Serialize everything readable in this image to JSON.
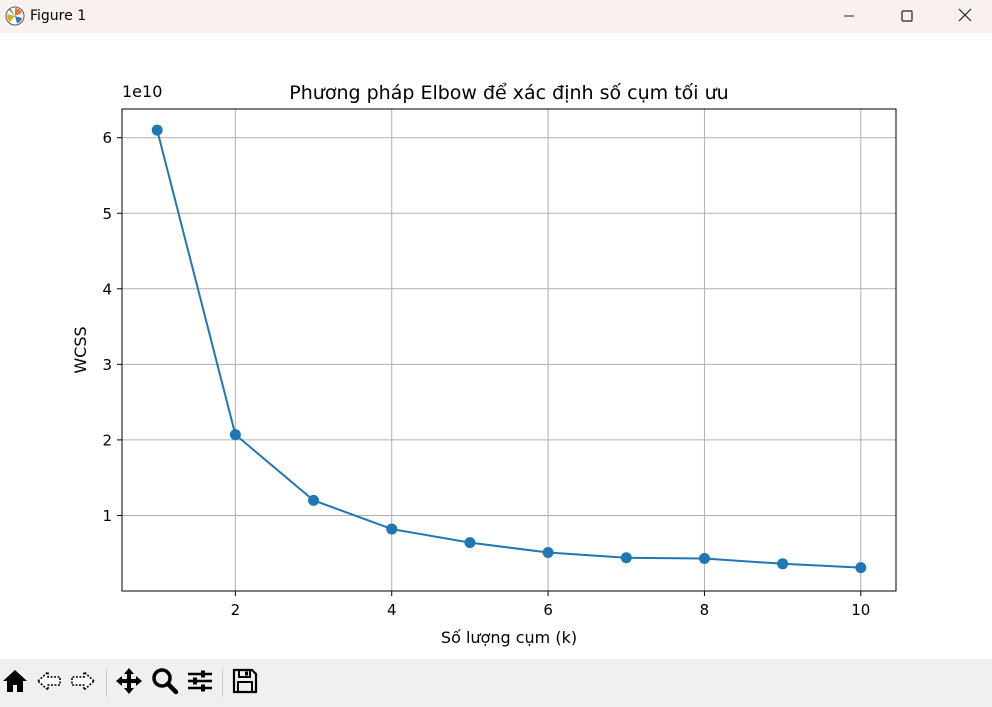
{
  "window": {
    "title": "Figure 1",
    "app_icon": "matplotlib-icon",
    "controls": [
      "minimize-icon",
      "maximize-icon",
      "close-icon"
    ]
  },
  "chart_data": {
    "type": "line",
    "title": "Phương pháp Elbow để xác định số cụm tối ưu",
    "xlabel": "Số lượng cụm (k)",
    "ylabel": "WCSS",
    "y_offset_label": "1e10",
    "x": [
      1,
      2,
      3,
      4,
      5,
      6,
      7,
      8,
      9,
      10
    ],
    "series": [
      {
        "values": [
          6.1,
          2.07,
          1.2,
          0.82,
          0.64,
          0.51,
          0.44,
          0.43,
          0.36,
          0.31
        ],
        "color": "#1f77b4",
        "marker": "circle"
      }
    ],
    "xlim": [
      0.55,
      10.45
    ],
    "ylim": [
      0.0,
      6.38
    ],
    "xticks": [
      2,
      4,
      6,
      8,
      10
    ],
    "xtick_labels": [
      "2",
      "4",
      "6",
      "8",
      "10"
    ],
    "yticks": [
      1,
      2,
      3,
      4,
      5,
      6
    ],
    "ytick_labels": [
      "1",
      "2",
      "3",
      "4",
      "5",
      "6"
    ],
    "grid": true
  },
  "toolbar": {
    "buttons": [
      "home-icon",
      "back-icon",
      "forward-icon",
      "pan-icon",
      "zoom-icon",
      "configure-subplots-icon",
      "save-icon"
    ]
  }
}
